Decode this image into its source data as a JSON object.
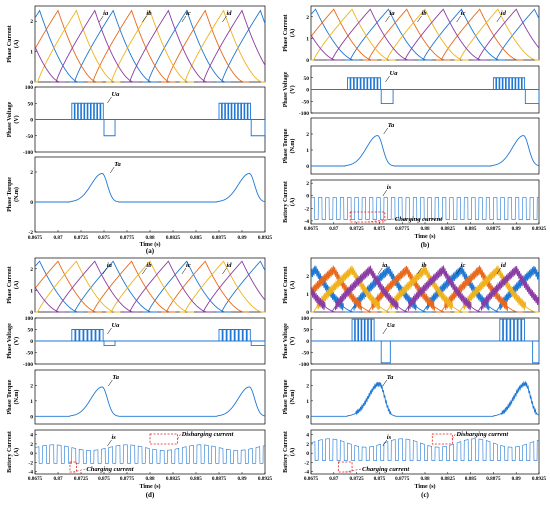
{
  "figure_title": "",
  "chart_data": [
    {
      "id": "a",
      "caption": "(a)",
      "type": "line",
      "subplots": [
        {
          "kind": "current",
          "ylabel": [
            "Phase Current",
            "(A)"
          ],
          "ylim": [
            0,
            2.5
          ],
          "yticks": [
            "2",
            "1",
            "0"
          ],
          "series": [
            {
              "name": "ia",
              "color": "#1f77d4",
              "shape": "smooth",
              "centers": [
                0.868,
                0.876,
                0.884,
                0.892
              ]
            },
            {
              "name": "ib",
              "color": "#e8681c",
              "shape": "smooth",
              "centers": [
                0.87,
                0.878,
                0.886
              ]
            },
            {
              "name": "ic",
              "color": "#f0b21c",
              "shape": "smooth",
              "centers": [
                0.872,
                0.88,
                0.888
              ]
            },
            {
              "name": "id",
              "color": "#8a3ca3",
              "shape": "smooth",
              "centers": [
                0.866,
                0.874,
                0.882,
                0.89
              ]
            }
          ],
          "labels": [
            {
              "text": "ia",
              "x": 0.8748
            },
            {
              "text": "ib",
              "x": 0.8795
            },
            {
              "text": "ic",
              "x": 0.8838
            },
            {
              "text": "id",
              "x": 0.8882
            }
          ]
        },
        {
          "kind": "voltage",
          "ylabel": [
            "Phase Voltage",
            "(V)"
          ],
          "ylim": [
            -100,
            100
          ],
          "yticks": [
            "100",
            "50",
            "0",
            "-50",
            "-100"
          ],
          "pwm_windows": [
            [
              0.8715,
              0.875
            ],
            [
              0.8875,
              0.891
            ]
          ],
          "pwm_count": 10,
          "pwm_high": 50,
          "neg_windows": [
            [
              0.875,
              0.8762
            ],
            [
              0.891,
              0.8925
            ]
          ],
          "neg_level": -50,
          "labels": [
            {
              "text": "Ua",
              "x": 0.8757
            }
          ]
        },
        {
          "kind": "torque",
          "ylabel": [
            "Phase Torque",
            "(N.m)"
          ],
          "ylim": [
            -2,
            3
          ],
          "yticks": [
            "2",
            "0",
            "-2"
          ],
          "peaks": [
            0.8748,
            0.8908
          ],
          "peak_value": 1.9,
          "jagged": false,
          "labels": [
            {
              "text": "Ta",
              "x": 0.876
            }
          ]
        }
      ],
      "xlabel": "Time (s)",
      "xticks": [
        "0.8675",
        "0.87",
        "0.8725",
        "0.875",
        "0.8775",
        "0.88",
        "0.8825",
        "0.885",
        "0.8875",
        "0.89",
        "0.8925"
      ]
    },
    {
      "id": "b",
      "caption": "(b)",
      "type": "line",
      "subplots": [
        {
          "kind": "current",
          "ylabel": [
            "Phase Current",
            "(A)"
          ],
          "ylim": [
            0,
            2.5
          ],
          "yticks": [
            "2",
            "1",
            "0"
          ],
          "series": [
            {
              "name": "ia",
              "color": "#1f77d4",
              "shape": "smooth",
              "centers": [
                0.868,
                0.876,
                0.884,
                0.892
              ]
            },
            {
              "name": "ib",
              "color": "#e8681c",
              "shape": "smooth",
              "centers": [
                0.87,
                0.878,
                0.886
              ]
            },
            {
              "name": "ic",
              "color": "#f0b21c",
              "shape": "smooth",
              "centers": [
                0.872,
                0.88,
                0.888
              ]
            },
            {
              "name": "id",
              "color": "#8a3ca3",
              "shape": "smooth",
              "centers": [
                0.866,
                0.874,
                0.882,
                0.89
              ]
            }
          ],
          "labels": [
            {
              "text": "ia",
              "x": 0.876
            },
            {
              "text": "ib",
              "x": 0.8795
            },
            {
              "text": "ic",
              "x": 0.8838
            },
            {
              "text": "id",
              "x": 0.8882
            }
          ]
        },
        {
          "kind": "voltage",
          "ylabel": [
            "Phase Voltage",
            "(V)"
          ],
          "ylim": [
            -100,
            100
          ],
          "yticks": [
            "50",
            "0",
            "-50",
            "-100"
          ],
          "pwm_windows": [
            [
              0.8715,
              0.8752
            ],
            [
              0.8875,
              0.891
            ]
          ],
          "pwm_count": 10,
          "pwm_high": 50,
          "neg_windows": [
            [
              0.8752,
              0.8765
            ],
            [
              0.891,
              0.8925
            ]
          ],
          "neg_level": -60,
          "labels": [
            {
              "text": "Ua",
              "x": 0.876
            }
          ]
        },
        {
          "kind": "torque",
          "ylabel": [
            "Phase Torque",
            "(N.m)"
          ],
          "ylim": [
            -0.5,
            3
          ],
          "yticks": [
            "2",
            "1",
            "0"
          ],
          "peaks": [
            0.8748,
            0.8908
          ],
          "peak_value": 1.9,
          "jagged": false,
          "labels": [
            {
              "text": "Ta",
              "x": 0.8758
            }
          ]
        },
        {
          "kind": "battery",
          "ylabel": [
            "Battery Current",
            "(A)"
          ],
          "ylim": [
            -4.5,
            2.5
          ],
          "yticks": [
            "2",
            "0",
            "-2",
            "-4"
          ],
          "mode": "charging_only",
          "labels": [
            {
              "text": "is",
              "x": 0.8757
            }
          ],
          "annotations": [
            {
              "text": "Charging current",
              "box": [
                0.8718,
                0.8756
              ]
            }
          ]
        }
      ],
      "xlabel": "Time (s)",
      "xticks": [
        "0.8675",
        "0.87",
        "0.8725",
        "0.875",
        "0.8775",
        "0.88",
        "0.8825",
        "0.885",
        "0.8875",
        "0.89",
        "0.8925"
      ]
    },
    {
      "id": "d",
      "caption": "(d)",
      "type": "line",
      "subplots": [
        {
          "kind": "current",
          "ylabel": [
            "Phase Current",
            "(A)"
          ],
          "ylim": [
            0,
            2.5
          ],
          "yticks": [
            "2",
            "1",
            "0"
          ],
          "series": [
            {
              "name": "ia",
              "color": "#1f77d4",
              "shape": "smooth",
              "centers": [
                0.868,
                0.876,
                0.884,
                0.892
              ]
            },
            {
              "name": "ib",
              "color": "#e8681c",
              "shape": "smooth",
              "centers": [
                0.87,
                0.878,
                0.886
              ]
            },
            {
              "name": "ic",
              "color": "#f0b21c",
              "shape": "smooth",
              "centers": [
                0.872,
                0.88,
                0.888
              ]
            },
            {
              "name": "id",
              "color": "#8a3ca3",
              "shape": "smooth",
              "centers": [
                0.866,
                0.874,
                0.882,
                0.89
              ]
            }
          ],
          "labels": [
            {
              "text": "ia",
              "x": 0.8752
            },
            {
              "text": "ib",
              "x": 0.8795
            },
            {
              "text": "ic",
              "x": 0.8838
            },
            {
              "text": "id",
              "x": 0.8882
            }
          ]
        },
        {
          "kind": "voltage",
          "ylabel": [
            "Phase Voltage",
            "(V)"
          ],
          "ylim": [
            -100,
            100
          ],
          "yticks": [
            "100",
            "50",
            "0",
            "-50",
            "-100"
          ],
          "pwm_windows": [
            [
              0.8715,
              0.875
            ],
            [
              0.8875,
              0.891
            ]
          ],
          "pwm_count": 8,
          "pwm_high": 50,
          "neg_windows": [
            [
              0.875,
              0.8762
            ],
            [
              0.891,
              0.8925
            ]
          ],
          "neg_level": -20,
          "labels": [
            {
              "text": "Ua",
              "x": 0.8757
            }
          ]
        },
        {
          "kind": "torque",
          "ylabel": [
            "Phase Torque",
            "(N.m)"
          ],
          "ylim": [
            -0.5,
            3
          ],
          "yticks": [
            "2",
            "1",
            "0"
          ],
          "peaks": [
            0.8748,
            0.8908
          ],
          "peak_value": 1.9,
          "jagged": false,
          "labels": [
            {
              "text": "Ta",
              "x": 0.8758
            }
          ]
        },
        {
          "kind": "battery",
          "ylabel": [
            "Battery Current",
            "(A)"
          ],
          "ylim": [
            -4.5,
            5
          ],
          "yticks": [
            "4",
            "2",
            "0",
            "-2",
            "-4"
          ],
          "mode": "charge_discharge",
          "labels": [
            {
              "text": "is",
              "x": 0.8757
            }
          ],
          "annotations": [
            {
              "text": "Disharging current",
              "box": [
                0.88,
                0.883
              ]
            },
            {
              "text": "Charging current",
              "box": [
                0.8713,
                0.872
              ]
            }
          ]
        }
      ],
      "xlabel": "Time (s)",
      "xticks": [
        "0.8675",
        "0.87",
        "0.8725",
        "0.875",
        "0.8775",
        "0.88",
        "0.8825",
        "0.885",
        "0.8875",
        "0.89",
        "0.8925"
      ]
    },
    {
      "id": "c",
      "caption": "(c)",
      "type": "line",
      "subplots": [
        {
          "kind": "current",
          "ylabel": [
            "Phase Current",
            "(A)"
          ],
          "ylim": [
            0,
            3
          ],
          "yticks": [
            "2",
            "1",
            "0"
          ],
          "series": [
            {
              "name": "ia",
              "color": "#1f77d4",
              "shape": "jagged",
              "centers": [
                0.868,
                0.876,
                0.884,
                0.892
              ]
            },
            {
              "name": "ib",
              "color": "#e8681c",
              "shape": "jagged",
              "centers": [
                0.87,
                0.878,
                0.886
              ]
            },
            {
              "name": "ic",
              "color": "#f0b21c",
              "shape": "jagged",
              "centers": [
                0.872,
                0.88,
                0.888
              ]
            },
            {
              "name": "id",
              "color": "#8a3ca3",
              "shape": "jagged",
              "centers": [
                0.866,
                0.874,
                0.882,
                0.89
              ]
            }
          ],
          "labels": [
            {
              "text": "ia",
              "x": 0.8752
            },
            {
              "text": "ib",
              "x": 0.8795
            },
            {
              "text": "ic",
              "x": 0.8838
            },
            {
              "text": "id",
              "x": 0.8882
            }
          ]
        },
        {
          "kind": "voltage",
          "ylabel": [
            "Phase Voltage",
            "(V)"
          ],
          "ylim": [
            -100,
            100
          ],
          "yticks": [
            "100",
            "50",
            "0",
            "-50",
            "-100"
          ],
          "pwm_windows": [
            [
              0.872,
              0.8745
            ],
            [
              0.8882,
              0.891
            ]
          ],
          "pwm_count": 7,
          "pwm_high": 95,
          "neg_windows": [
            [
              0.8752,
              0.8762
            ],
            [
              0.8918,
              0.8925
            ]
          ],
          "neg_level": -95,
          "labels": [
            {
              "text": "Ua",
              "x": 0.8757
            }
          ]
        },
        {
          "kind": "torque",
          "ylabel": [
            "Phase Torque",
            "(N.m)"
          ],
          "ylim": [
            -0.5,
            3
          ],
          "yticks": [
            "2",
            "1",
            "0"
          ],
          "peaks": [
            0.875,
            0.891
          ],
          "peak_value": 2.1,
          "jagged": true,
          "labels": [
            {
              "text": "Ta",
              "x": 0.8757
            }
          ]
        },
        {
          "kind": "battery",
          "ylabel": [
            "Battery Current",
            "(A)"
          ],
          "ylim": [
            -4.5,
            5
          ],
          "yticks": [
            "4",
            "2",
            "0",
            "-2",
            "-4"
          ],
          "mode": "charge_discharge_high",
          "labels": [
            {
              "text": "is",
              "x": 0.8757
            }
          ],
          "annotations": [
            {
              "text": "Disharging current",
              "box": [
                0.8808,
                0.883
              ]
            },
            {
              "text": "Charging current",
              "box": [
                0.8705,
                0.872
              ]
            }
          ]
        }
      ],
      "xlabel": "Time (s)",
      "xticks": [
        "0.8675",
        "0.87",
        "0.8725",
        "0.875",
        "0.8775",
        "0.88",
        "0.8825",
        "0.885",
        "0.8875",
        "0.89",
        "0.8925"
      ]
    }
  ],
  "x_range": [
    0.8675,
    0.8925
  ]
}
